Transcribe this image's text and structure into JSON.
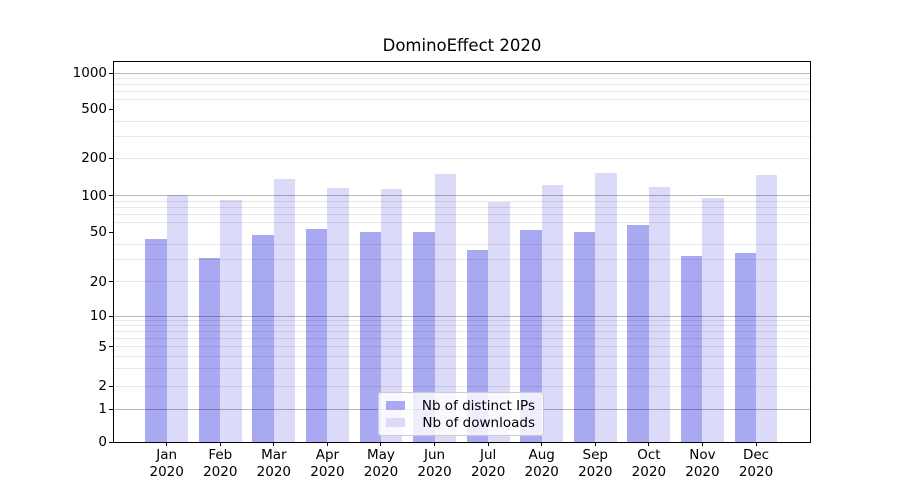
{
  "chart_data": {
    "type": "bar",
    "title": "DominoEffect 2020",
    "categories": [
      "Jan",
      "Feb",
      "Mar",
      "Apr",
      "May",
      "Jun",
      "Jul",
      "Aug",
      "Sep",
      "Oct",
      "Nov",
      "Dec"
    ],
    "x_year_label": "2020",
    "series": [
      {
        "name": "Nb of distinct IPs",
        "color": "#a9a9f1",
        "values": [
          44,
          31,
          48,
          53,
          50,
          50,
          36,
          52,
          50,
          57,
          32,
          34
        ]
      },
      {
        "name": "Nb of downloads",
        "color": "#dbdbf9",
        "values": [
          102,
          92,
          137,
          116,
          113,
          150,
          89,
          123,
          151,
          117,
          95,
          146
        ]
      }
    ],
    "yticks": [
      0,
      1,
      2,
      5,
      10,
      20,
      50,
      100,
      200,
      500,
      1000
    ],
    "yscale": "log-like (symlog)",
    "ylim": [
      0,
      1230
    ],
    "grid": true,
    "legend_position": "lower-center"
  }
}
